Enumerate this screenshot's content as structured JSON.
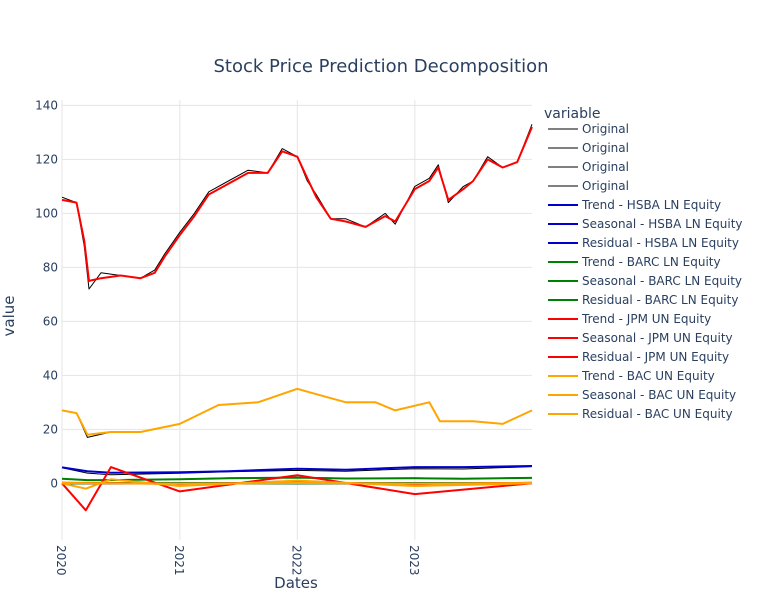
{
  "chart_data": {
    "type": "line",
    "title": "Stock Price Prediction Decomposition",
    "xlabel": "Dates",
    "ylabel": "value",
    "legend_title": "variable",
    "legend_position": "right",
    "grid": true,
    "xlim": [
      "2020-01-01",
      "2023-12-31"
    ],
    "ylim": [
      -21,
      142
    ],
    "x_ticks": [
      "2020",
      "2021",
      "2022",
      "2023"
    ],
    "y_ticks": [
      0,
      20,
      40,
      60,
      80,
      100,
      120,
      140
    ],
    "colors": {
      "original": "#000000",
      "hsba": "#0000cd",
      "barc": "#008000",
      "jpm": "#ff0000",
      "bac": "#ffa500",
      "grid": "#e5e5e5",
      "text": "#2a3f5f"
    },
    "series": [
      {
        "name": "Original",
        "color": "#000000",
        "x": [
          "2020-01-01",
          "2020-02-15",
          "2020-03-10",
          "2020-03-25",
          "2020-05-01",
          "2020-07-01",
          "2020-09-01",
          "2020-10-15",
          "2020-11-15",
          "2021-01-01",
          "2021-02-15",
          "2021-04-01",
          "2021-06-01",
          "2021-08-01",
          "2021-10-01",
          "2021-11-15",
          "2022-01-01",
          "2022-02-01",
          "2022-03-01",
          "2022-04-15",
          "2022-06-01",
          "2022-08-01",
          "2022-10-01",
          "2022-11-01",
          "2023-01-01",
          "2023-02-15",
          "2023-03-15",
          "2023-04-15",
          "2023-06-01",
          "2023-07-01",
          "2023-08-15",
          "2023-10-01",
          "2023-11-15",
          "2023-12-31"
        ],
        "values": [
          106,
          104,
          88,
          72,
          78,
          77,
          76,
          79,
          85,
          93,
          100,
          108,
          112,
          116,
          115,
          124,
          121,
          112,
          107,
          98,
          98,
          95,
          100,
          96,
          110,
          113,
          118,
          104,
          110,
          112,
          121,
          117,
          119,
          133
        ]
      },
      {
        "name": "Original",
        "color": "#000000",
        "x": [
          "2020-01-01",
          "2020-02-15",
          "2020-03-20",
          "2020-06-01",
          "2020-09-01",
          "2021-01-01",
          "2021-05-01",
          "2021-09-01",
          "2022-01-01",
          "2022-03-01",
          "2022-06-01",
          "2022-09-01",
          "2022-11-01",
          "2023-02-15",
          "2023-03-20",
          "2023-07-01",
          "2023-10-01",
          "2023-12-31"
        ],
        "values": [
          27,
          26,
          17,
          19,
          19,
          22,
          29,
          30,
          35,
          33,
          30,
          30,
          27,
          30,
          23,
          23,
          22,
          27
        ]
      },
      {
        "name": "Original",
        "color": "#000000",
        "x": [
          "2020-01-01",
          "2020-03-20",
          "2020-06-01",
          "2021-01-01",
          "2021-06-01",
          "2022-01-01",
          "2022-06-01",
          "2023-01-01",
          "2023-06-01",
          "2023-12-31"
        ],
        "values": [
          1.8,
          1.1,
          1.2,
          1.5,
          2.0,
          2.2,
          1.9,
          2.0,
          1.8,
          2.1
        ]
      },
      {
        "name": "Original",
        "color": "#000000",
        "x": [
          "2020-01-01",
          "2020-03-20",
          "2020-06-01",
          "2021-01-01",
          "2021-06-01",
          "2022-01-01",
          "2022-06-01",
          "2023-01-01",
          "2023-06-01",
          "2023-12-31"
        ],
        "values": [
          5.8,
          3.8,
          3.2,
          3.7,
          4.3,
          4.8,
          4.5,
          5.4,
          5.3,
          6.2
        ]
      },
      {
        "name": "Trend - HSBA LN Equity",
        "color": "#0000cd",
        "x": [
          "2020-01-01",
          "2020-03-20",
          "2020-06-01",
          "2021-01-01",
          "2021-06-01",
          "2022-01-01",
          "2022-06-01",
          "2023-01-01",
          "2023-06-01",
          "2023-12-31"
        ],
        "values": [
          5.9,
          4.5,
          3.9,
          4.1,
          4.5,
          5.4,
          5.0,
          6.0,
          6.0,
          6.4
        ]
      },
      {
        "name": "Seasonal - HSBA LN Equity",
        "color": "#0000cd",
        "x": [
          "2020-01-01",
          "2021-01-01",
          "2022-01-01",
          "2023-01-01",
          "2023-12-31"
        ],
        "values": [
          0,
          0,
          0,
          0,
          0
        ]
      },
      {
        "name": "Residual - HSBA LN Equity",
        "color": "#0000cd",
        "x": [
          "2020-01-01",
          "2021-01-01",
          "2022-01-01",
          "2023-01-01",
          "2023-12-31"
        ],
        "values": [
          0,
          0,
          0,
          0,
          0
        ]
      },
      {
        "name": "Trend - BARC LN Equity",
        "color": "#008000",
        "x": [
          "2020-01-01",
          "2020-03-20",
          "2020-06-01",
          "2021-01-01",
          "2021-06-01",
          "2022-01-01",
          "2022-06-01",
          "2023-01-01",
          "2023-06-01",
          "2023-12-31"
        ],
        "values": [
          1.7,
          1.2,
          1.2,
          1.5,
          1.9,
          2.1,
          1.8,
          1.9,
          1.7,
          2.0
        ]
      },
      {
        "name": "Seasonal - BARC LN Equity",
        "color": "#008000",
        "x": [
          "2020-01-01",
          "2021-01-01",
          "2022-01-01",
          "2023-01-01",
          "2023-12-31"
        ],
        "values": [
          0,
          0,
          0,
          0,
          0
        ]
      },
      {
        "name": "Residual - BARC LN Equity",
        "color": "#008000",
        "x": [
          "2020-01-01",
          "2021-01-01",
          "2022-01-01",
          "2023-01-01",
          "2023-12-31"
        ],
        "values": [
          0,
          0,
          0,
          0,
          0
        ]
      },
      {
        "name": "Trend - JPM UN Equity",
        "color": "#ff0000",
        "x": [
          "2020-01-01",
          "2020-02-15",
          "2020-03-10",
          "2020-03-25",
          "2020-05-01",
          "2020-07-01",
          "2020-09-01",
          "2020-10-15",
          "2020-11-15",
          "2021-01-01",
          "2021-02-15",
          "2021-04-01",
          "2021-06-01",
          "2021-08-01",
          "2021-10-01",
          "2021-11-15",
          "2022-01-01",
          "2022-02-01",
          "2022-03-01",
          "2022-04-15",
          "2022-06-01",
          "2022-08-01",
          "2022-10-01",
          "2022-11-01",
          "2023-01-01",
          "2023-02-15",
          "2023-03-15",
          "2023-04-15",
          "2023-06-01",
          "2023-07-01",
          "2023-08-15",
          "2023-10-01",
          "2023-11-15",
          "2023-12-31"
        ],
        "values": [
          105,
          104,
          90,
          75,
          76,
          77,
          76,
          78,
          84,
          92,
          99,
          107,
          111,
          115,
          115,
          123,
          121,
          113,
          106,
          98,
          97,
          95,
          99,
          97,
          109,
          112,
          117,
          105,
          109,
          112,
          120,
          117,
          119,
          132
        ]
      },
      {
        "name": "Seasonal - JPM UN Equity",
        "color": "#ff0000",
        "x": [
          "2020-01-01",
          "2021-01-01",
          "2022-01-01",
          "2023-01-01",
          "2023-12-31"
        ],
        "values": [
          0.2,
          -0.2,
          0.3,
          -0.3,
          0.2
        ]
      },
      {
        "name": "Residual - JPM UN Equity",
        "color": "#ff0000",
        "x": [
          "2020-01-01",
          "2020-03-15",
          "2020-06-01",
          "2021-01-01",
          "2022-01-01",
          "2023-01-01",
          "2023-12-31"
        ],
        "values": [
          0,
          -10,
          6,
          -3,
          3,
          -4,
          0
        ]
      },
      {
        "name": "Trend - BAC UN Equity",
        "color": "#ffa500",
        "x": [
          "2020-01-01",
          "2020-02-15",
          "2020-03-20",
          "2020-06-01",
          "2020-09-01",
          "2021-01-01",
          "2021-05-01",
          "2021-09-01",
          "2022-01-01",
          "2022-03-01",
          "2022-06-01",
          "2022-09-01",
          "2022-11-01",
          "2023-02-15",
          "2023-03-20",
          "2023-07-01",
          "2023-10-01",
          "2023-12-31"
        ],
        "values": [
          27,
          26,
          18,
          19,
          19,
          22,
          29,
          30,
          35,
          33,
          30,
          30,
          27,
          30,
          23,
          23,
          22,
          27
        ]
      },
      {
        "name": "Seasonal - BAC UN Equity",
        "color": "#ffa500",
        "x": [
          "2020-01-01",
          "2021-01-01",
          "2022-01-01",
          "2023-01-01",
          "2023-12-31"
        ],
        "values": [
          0.1,
          -0.1,
          0.1,
          -0.1,
          0.1
        ]
      },
      {
        "name": "Residual - BAC UN Equity",
        "color": "#ffa500",
        "x": [
          "2020-01-01",
          "2020-03-15",
          "2020-06-01",
          "2021-01-01",
          "2022-01-01",
          "2023-01-01",
          "2023-12-31"
        ],
        "values": [
          0,
          -2,
          1.5,
          -1,
          1,
          -1,
          0
        ]
      }
    ]
  }
}
